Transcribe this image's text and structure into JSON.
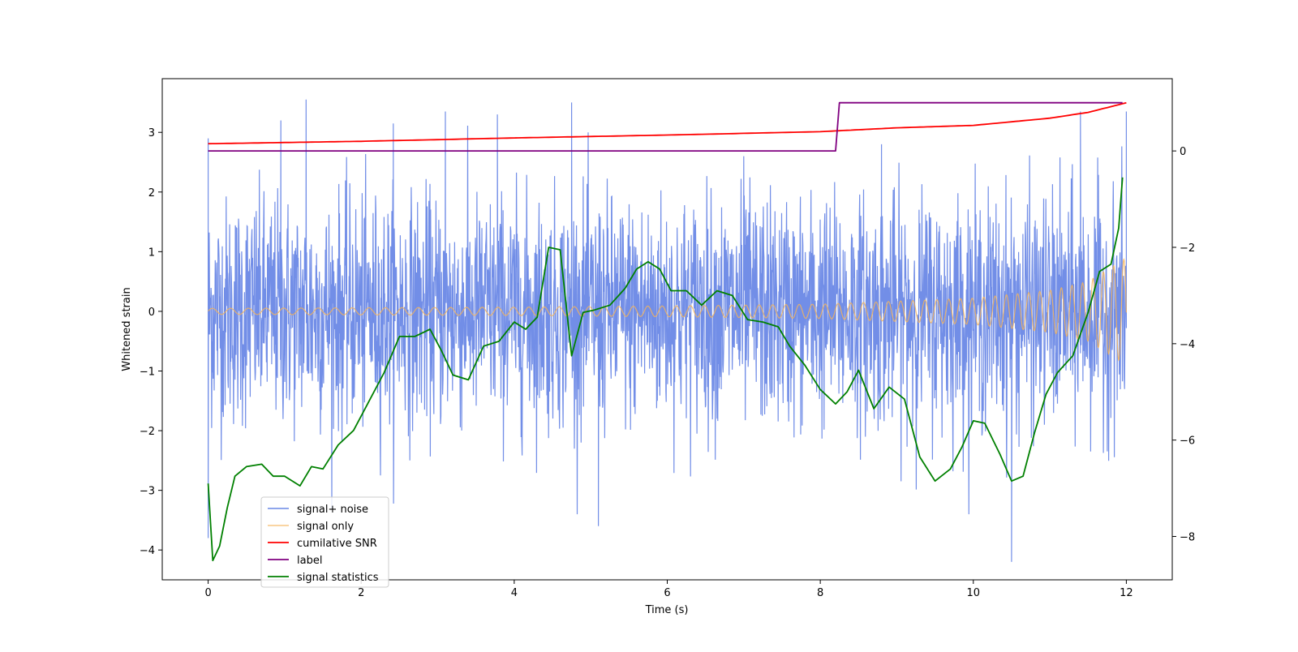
{
  "chart_data": {
    "type": "line",
    "title": "",
    "xlabel": "Time (s)",
    "ylabel": "Whitened strain",
    "ylabel_right": "",
    "xlim": [
      -0.6,
      12.6
    ],
    "ylim": [
      -4.5,
      3.9
    ],
    "ylim_right": [
      -8.9,
      1.5
    ],
    "x_ticks": [
      0,
      2,
      4,
      6,
      8,
      10,
      12
    ],
    "y_ticks": [
      -4,
      -3,
      -2,
      -1,
      0,
      1,
      2,
      3
    ],
    "y_ticks_right": [
      -8,
      -6,
      -4,
      -2,
      0
    ],
    "grid": false,
    "legend_position": "lower-left",
    "colors": {
      "noise": "#6a88e6",
      "signal": "#f5b45a",
      "snr": "#ff0000",
      "label": "#800080",
      "stats": "#008000"
    },
    "series": [
      {
        "name": "signal+ noise",
        "axis": "left",
        "description_stats": {
          "mean": 0.0,
          "amplitude": "approx -4.2 to 3.55",
          "x_range": [
            0,
            12
          ]
        },
        "notable_spikes": [
          [
            0.0,
            2.9
          ],
          [
            0.0,
            -3.8
          ],
          [
            0.95,
            3.2
          ],
          [
            1.28,
            3.55
          ],
          [
            2.42,
            3.15
          ],
          [
            3.1,
            3.35
          ],
          [
            3.78,
            3.3
          ],
          [
            4.75,
            3.5
          ],
          [
            5.1,
            -3.6
          ],
          [
            7.0,
            2.6
          ],
          [
            8.8,
            2.8
          ],
          [
            10.5,
            -4.2
          ],
          [
            11.4,
            3.35
          ],
          [
            12.0,
            3.35
          ]
        ]
      },
      {
        "name": "signal only",
        "axis": "left",
        "x_range": [
          0,
          12
        ],
        "envelope": [
          [
            0,
            0.05
          ],
          [
            2,
            0.06
          ],
          [
            4,
            0.07
          ],
          [
            6,
            0.09
          ],
          [
            8,
            0.12
          ],
          [
            10,
            0.22
          ],
          [
            11,
            0.35
          ],
          [
            11.5,
            0.5
          ],
          [
            12,
            0.9
          ]
        ]
      },
      {
        "name": "cumilative SNR",
        "axis": "right",
        "x": [
          0,
          2,
          4,
          6,
          8,
          9,
          10,
          11,
          11.5,
          12
        ],
        "y": [
          0.15,
          0.2,
          0.27,
          0.33,
          0.4,
          0.48,
          0.53,
          0.68,
          0.8,
          1.0
        ]
      },
      {
        "name": "label",
        "axis": "right",
        "x": [
          0,
          8.2,
          8.25,
          11.95
        ],
        "y": [
          0,
          0,
          1,
          1
        ]
      },
      {
        "name": "signal statistics",
        "axis": "right",
        "x": [
          0,
          0.06,
          0.15,
          0.25,
          0.35,
          0.5,
          0.7,
          0.85,
          1.0,
          1.2,
          1.35,
          1.5,
          1.7,
          1.9,
          2.1,
          2.3,
          2.5,
          2.7,
          2.9,
          3.05,
          3.2,
          3.4,
          3.6,
          3.8,
          4.0,
          4.15,
          4.3,
          4.45,
          4.6,
          4.75,
          4.9,
          5.05,
          5.25,
          5.45,
          5.6,
          5.75,
          5.9,
          6.05,
          6.25,
          6.45,
          6.65,
          6.85,
          7.05,
          7.25,
          7.45,
          7.6,
          7.8,
          8.0,
          8.2,
          8.35,
          8.5,
          8.7,
          8.9,
          9.1,
          9.3,
          9.5,
          9.7,
          9.85,
          10.0,
          10.15,
          10.35,
          10.5,
          10.65,
          10.8,
          10.95,
          11.1,
          11.3,
          11.5,
          11.65,
          11.8,
          11.9,
          11.95
        ],
        "y": [
          -6.9,
          -8.5,
          -8.2,
          -7.4,
          -6.75,
          -6.55,
          -6.5,
          -6.75,
          -6.75,
          -6.95,
          -6.55,
          -6.6,
          -6.1,
          -5.8,
          -5.2,
          -4.6,
          -3.85,
          -3.85,
          -3.7,
          -4.15,
          -4.65,
          -4.75,
          -4.05,
          -3.95,
          -3.55,
          -3.7,
          -3.45,
          -2.0,
          -2.05,
          -4.25,
          -3.35,
          -3.3,
          -3.2,
          -2.85,
          -2.45,
          -2.3,
          -2.45,
          -2.9,
          -2.9,
          -3.2,
          -2.9,
          -3.0,
          -3.5,
          -3.55,
          -3.65,
          -4.05,
          -4.45,
          -4.95,
          -5.25,
          -5.0,
          -4.55,
          -5.35,
          -4.9,
          -5.15,
          -6.35,
          -6.85,
          -6.6,
          -6.15,
          -5.6,
          -5.65,
          -6.3,
          -6.85,
          -6.75,
          -5.85,
          -5.05,
          -4.6,
          -4.25,
          -3.35,
          -2.5,
          -2.35,
          -1.6,
          -0.55
        ]
      }
    ]
  }
}
